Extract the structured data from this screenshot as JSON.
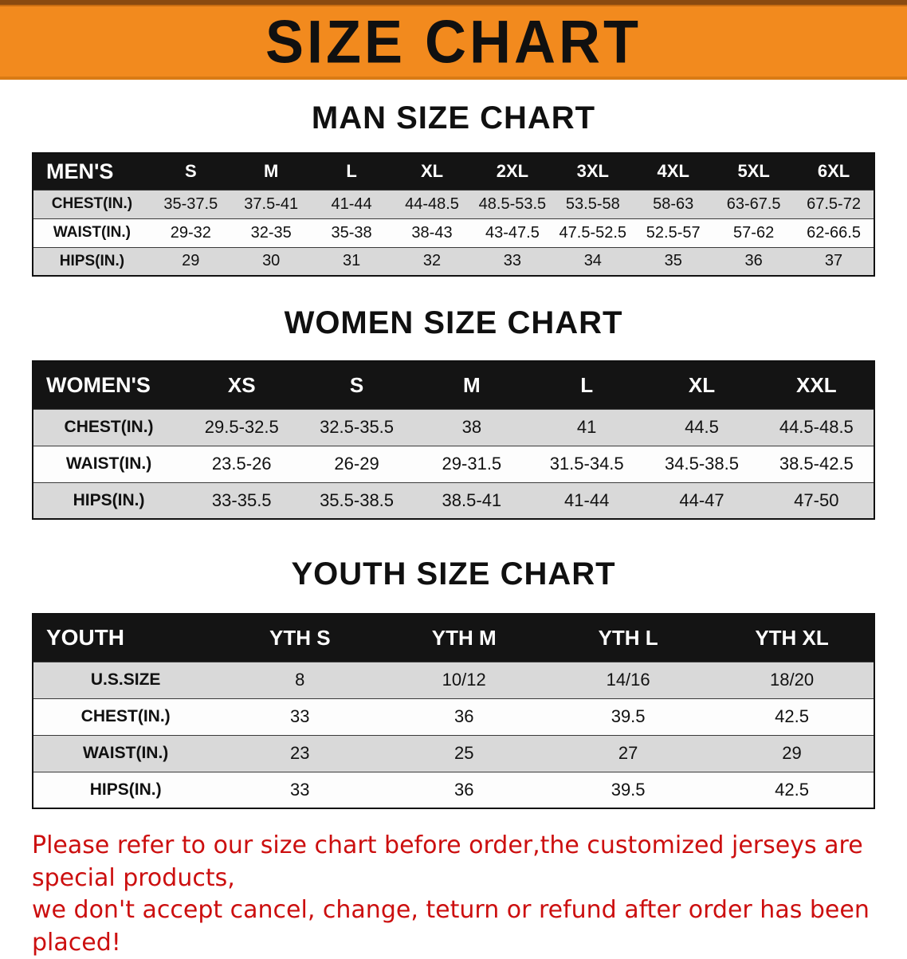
{
  "banner": {
    "title": "SIZE CHART"
  },
  "colors": {
    "banner_orange": "#f28a1e",
    "table_header_black": "#141414",
    "row_shade_gray": "#d9d9d9",
    "footer_red": "#cc0f0f"
  },
  "sections": [
    {
      "title": "MAN SIZE CHART",
      "table": {
        "header": [
          "MEN'S",
          "S",
          "M",
          "L",
          "XL",
          "2XL",
          "3XL",
          "4XL",
          "5XL",
          "6XL"
        ],
        "rows": [
          [
            "CHEST(IN.)",
            "35-37.5",
            "37.5-41",
            "41-44",
            "44-48.5",
            "48.5-53.5",
            "53.5-58",
            "58-63",
            "63-67.5",
            "67.5-72"
          ],
          [
            "WAIST(IN.)",
            "29-32",
            "32-35",
            "35-38",
            "38-43",
            "43-47.5",
            "47.5-52.5",
            "52.5-57",
            "57-62",
            "62-66.5"
          ],
          [
            "HIPS(IN.)",
            "29",
            "30",
            "31",
            "32",
            "33",
            "34",
            "35",
            "36",
            "37"
          ]
        ]
      }
    },
    {
      "title": "WOMEN SIZE CHART",
      "table": {
        "header": [
          "WOMEN'S",
          "XS",
          "S",
          "M",
          "L",
          "XL",
          "XXL"
        ],
        "rows": [
          [
            "CHEST(IN.)",
            "29.5-32.5",
            "32.5-35.5",
            "38",
            "41",
            "44.5",
            "44.5-48.5"
          ],
          [
            "WAIST(IN.)",
            "23.5-26",
            "26-29",
            "29-31.5",
            "31.5-34.5",
            "34.5-38.5",
            "38.5-42.5"
          ],
          [
            "HIPS(IN.)",
            "33-35.5",
            "35.5-38.5",
            "38.5-41",
            "41-44",
            "44-47",
            "47-50"
          ]
        ]
      }
    },
    {
      "title": "YOUTH SIZE CHART",
      "table": {
        "header": [
          "YOUTH",
          "YTH S",
          "YTH M",
          "YTH L",
          "YTH XL"
        ],
        "rows": [
          [
            "U.S.SIZE",
            "8",
            "10/12",
            "14/16",
            "18/20"
          ],
          [
            "CHEST(IN.)",
            "33",
            "36",
            "39.5",
            "42.5"
          ],
          [
            "WAIST(IN.)",
            "23",
            "25",
            "27",
            "29"
          ],
          [
            "HIPS(IN.)",
            "33",
            "36",
            "39.5",
            "42.5"
          ]
        ]
      }
    }
  ],
  "footer": {
    "line1": "Please refer to our size chart before order,the customized jerseys are special products,",
    "line2": "we don't accept cancel, change, teturn or refund after order has been placed!"
  }
}
